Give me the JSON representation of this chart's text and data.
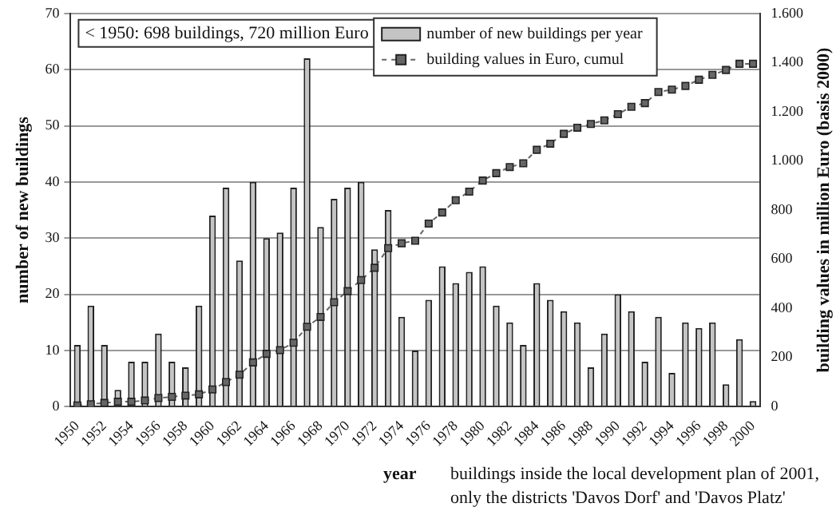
{
  "chart_data": {
    "type": "bar",
    "categories": [
      "1950",
      null,
      "1952",
      null,
      "1954",
      null,
      "1956",
      null,
      "1958",
      null,
      "1960",
      null,
      "1962",
      null,
      "1964",
      null,
      "1966",
      null,
      "1968",
      null,
      "1970",
      null,
      "1972",
      null,
      "1974",
      null,
      "1976",
      null,
      "1978",
      null,
      "1980",
      null,
      "1982",
      null,
      "1984",
      null,
      "1986",
      null,
      "1988",
      null,
      "1990",
      null,
      "1992",
      null,
      "1994",
      null,
      "1996",
      null,
      "1998",
      null,
      "2000"
    ],
    "series": [
      {
        "name": "number of new buildings per year",
        "color": "#c4c4c4",
        "values": [
          11,
          18,
          11,
          3,
          8,
          8,
          13,
          8,
          7,
          18,
          34,
          39,
          26,
          40,
          30,
          31,
          39,
          62,
          32,
          37,
          39,
          40,
          28,
          35,
          16,
          10,
          19,
          25,
          22,
          24,
          25,
          18,
          15,
          11,
          22,
          19,
          17,
          15,
          7,
          13,
          20,
          17,
          8,
          16,
          6,
          15,
          14,
          15,
          4,
          12,
          1
        ]
      },
      {
        "name": "building values in Euro, cumul",
        "type": "line",
        "axis": "y2",
        "color": "#666666",
        "values": [
          5,
          10,
          15,
          20,
          20,
          25,
          35,
          40,
          45,
          50,
          70,
          100,
          130,
          180,
          215,
          230,
          260,
          325,
          365,
          425,
          470,
          515,
          565,
          645,
          665,
          675,
          745,
          790,
          840,
          875,
          920,
          950,
          975,
          990,
          1045,
          1070,
          1110,
          1135,
          1150,
          1165,
          1190,
          1220,
          1235,
          1280,
          1290,
          1305,
          1330,
          1350,
          1370,
          1395,
          1395
        ]
      }
    ],
    "ylabel": "number of new buildings",
    "y2label": "building values in million Euro (basis 2000)",
    "xlabel": "year",
    "ylim": [
      0,
      70
    ],
    "yticks": [
      0,
      10,
      20,
      30,
      40,
      50,
      60,
      70
    ],
    "y2lim": [
      0,
      1600
    ],
    "y2ticks": [
      0,
      200,
      400,
      600,
      800,
      {
        "value": 1000,
        "label": "1.000"
      },
      {
        "value": 1200,
        "label": "1.200"
      },
      {
        "value": 1400,
        "label": "1.400"
      },
      {
        "value": 1600,
        "label": "1.600"
      }
    ],
    "annotations": [
      "< 1950: 698 buildings, 720 million Euro",
      "buildings inside the local development plan of 2001, only the districts 'Davos Dorf' and 'Davos Platz'"
    ],
    "grid": "y",
    "legend": "top",
    "marker": "square",
    "line_style": "dashed"
  }
}
